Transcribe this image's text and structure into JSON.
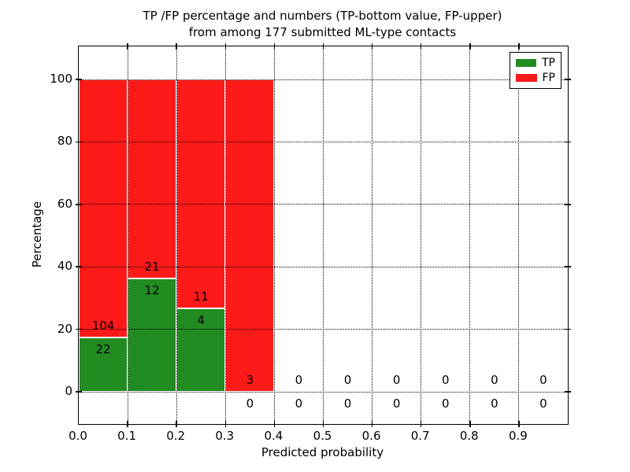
{
  "figure": {
    "title_line1": "TP /FP percentage and numbers (TP-bottom value, FP-upper)",
    "title_line2": "from among 177 submitted ML-type contacts",
    "xlabel": "Predicted probability",
    "ylabel": "Percentage"
  },
  "legend": {
    "position": "upper right",
    "items": [
      {
        "label": "TP",
        "color": "#228b22"
      },
      {
        "label": "FP",
        "color": "#ff1a1a"
      }
    ]
  },
  "chart_data": {
    "type": "bar",
    "stacked": true,
    "normalized": "percent-per-bin",
    "title": "TP /FP percentage and numbers (TP-bottom value, FP-upper)\nfrom among 177 submitted ML-type contacts",
    "xlabel": "Predicted probability",
    "ylabel": "Percentage",
    "total_contacts": 177,
    "bin_width": 0.1,
    "bins": [
      {
        "range": "0.0-0.1",
        "tp": 22,
        "fp": 104,
        "tp_pct": 17.46,
        "fp_pct": 82.54
      },
      {
        "range": "0.1-0.2",
        "tp": 12,
        "fp": 21,
        "tp_pct": 36.36,
        "fp_pct": 63.64
      },
      {
        "range": "0.2-0.3",
        "tp": 4,
        "fp": 11,
        "tp_pct": 26.67,
        "fp_pct": 73.33
      },
      {
        "range": "0.3-0.4",
        "tp": 0,
        "fp": 3,
        "tp_pct": 0,
        "fp_pct": 100
      },
      {
        "range": "0.4-0.5",
        "tp": 0,
        "fp": 0,
        "tp_pct": 0,
        "fp_pct": 0
      },
      {
        "range": "0.5-0.6",
        "tp": 0,
        "fp": 0,
        "tp_pct": 0,
        "fp_pct": 0
      },
      {
        "range": "0.6-0.7",
        "tp": 0,
        "fp": 0,
        "tp_pct": 0,
        "fp_pct": 0
      },
      {
        "range": "0.7-0.8",
        "tp": 0,
        "fp": 0,
        "tp_pct": 0,
        "fp_pct": 0
      },
      {
        "range": "0.8-0.9",
        "tp": 0,
        "fp": 0,
        "tp_pct": 0,
        "fp_pct": 0
      },
      {
        "range": "0.9-1.0",
        "tp": 0,
        "fp": 0,
        "tp_pct": 0,
        "fp_pct": 0
      }
    ],
    "x_ticks": [
      "0.0",
      "0.1",
      "0.2",
      "0.3",
      "0.4",
      "0.5",
      "0.6",
      "0.7",
      "0.8",
      "0.9"
    ],
    "y_ticks": [
      0,
      20,
      40,
      60,
      80,
      100
    ],
    "xlim": [
      0.0,
      1.0
    ],
    "ylim": [
      -10,
      110
    ],
    "grid": "dotted",
    "legend_position": "upper right",
    "colors": {
      "tp": "#228b22",
      "fp": "#ff1a1a",
      "bar_edge": "#ffffff",
      "grid": "#000000"
    }
  }
}
